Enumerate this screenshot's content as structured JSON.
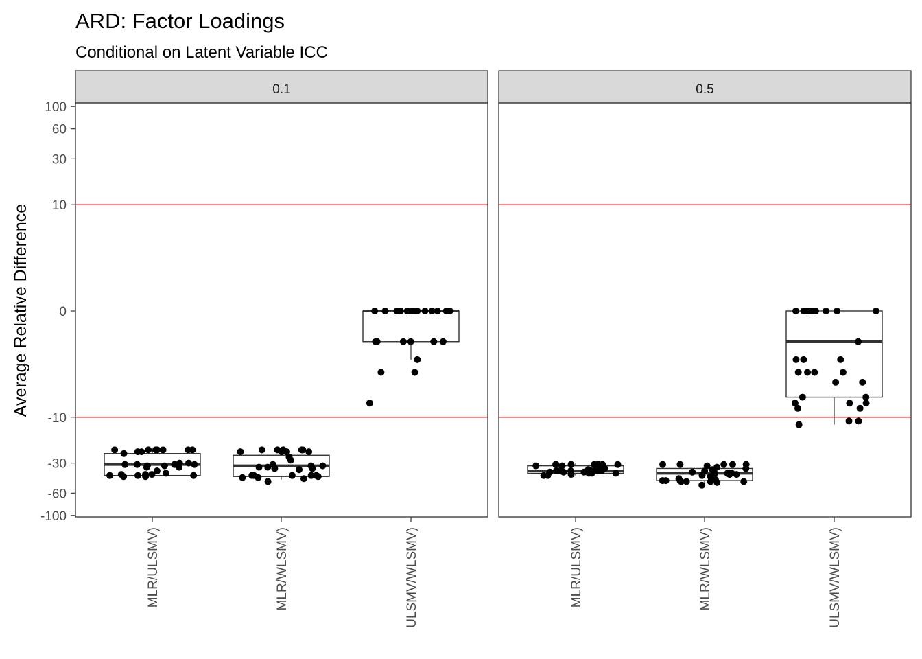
{
  "chart_data": {
    "type": "box",
    "title": "ARD: Factor Loadings",
    "subtitle": "Conditional on Latent Variable ICC",
    "xlabel": "",
    "ylabel": "Average Relative Difference",
    "y_scale": "pseudo-log (symmetric)",
    "ylim": [
      -120,
      120
    ],
    "y_ticks": [
      100,
      60,
      30,
      10,
      0,
      -10,
      -30,
      -60,
      -100
    ],
    "reference_lines": [
      10,
      -10
    ],
    "reference_line_color": "#e41a1c",
    "categories": [
      "MLR/ULSMV)",
      "MLR/WLSMV)",
      "ULSMV/WLSMV)"
    ],
    "grid": false,
    "panels": [
      {
        "facet": "0.1",
        "boxes": [
          {
            "category": "MLR/ULSMV)",
            "q1": -40,
            "median": -31,
            "q3": -24,
            "whisker_low": -41,
            "whisker_high": -22,
            "points": [
              -22,
              -22,
              -22,
              -23,
              -22,
              -22,
              -24,
              -23,
              -22,
              -22,
              -30,
              -31,
              -31,
              -33,
              -32,
              -30,
              -33,
              -32,
              -31,
              -31,
              -36,
              -38,
              -39,
              -39,
              -40,
              -39,
              -40,
              -41,
              -41,
              -40
            ]
          },
          {
            "category": "MLR/WLSMV)",
            "q1": -41,
            "median": -32,
            "q3": -25,
            "whisker_low": -44,
            "whisker_high": -22,
            "points": [
              -22,
              -23,
              -22,
              -22,
              -23,
              -22,
              -23,
              -22,
              -22,
              -23,
              -26,
              -28,
              -31,
              -32,
              -33,
              -34,
              -33,
              -32,
              -35,
              -34,
              -40,
              -42,
              -40,
              -41,
              -42,
              -43,
              -40,
              -40,
              -40,
              -46
            ]
          },
          {
            "category": "ULSMV/WLSMV)",
            "q1": -1,
            "median": 0,
            "q3": 0,
            "whisker_low": -2,
            "whisker_high": 0,
            "points": [
              0,
              0,
              0,
              0,
              0,
              0,
              0,
              0,
              0,
              0,
              0,
              0,
              0,
              0,
              0,
              0,
              0,
              0,
              0,
              0,
              -1,
              -1,
              -1,
              -1,
              -1,
              -2,
              -3,
              -3,
              -1,
              -7
            ]
          }
        ]
      },
      {
        "facet": "0.5",
        "boxes": [
          {
            "category": "MLR/ULSMV)",
            "q1": -38,
            "median": -36,
            "q3": -32,
            "whisker_low": -40,
            "whisker_high": -30,
            "points": [
              -31,
              -31,
              -31,
              -31,
              -31,
              -31,
              -31,
              -31,
              -32,
              -32,
              -34,
              -35,
              -35,
              -36,
              -36,
              -36,
              -36,
              -37,
              -36,
              -36,
              -36,
              -36,
              -37,
              -37,
              -38,
              -38,
              -39,
              -40,
              -40,
              -38
            ]
          },
          {
            "category": "MLR/WLSMV)",
            "q1": -45,
            "median": -38,
            "q3": -34,
            "whisker_low": -48,
            "whisker_high": -31,
            "points": [
              -31,
              -31,
              -31,
              -31,
              -31,
              -32,
              -33,
              -34,
              -35,
              -36,
              -37,
              -38,
              -38,
              -38,
              -39,
              -40,
              -39,
              -38,
              -41,
              -43,
              -44,
              -45,
              -45,
              -46,
              -46,
              -45,
              -46,
              -46,
              -47,
              -50
            ]
          },
          {
            "category": "ULSMV/WLSMV)",
            "q1": -6,
            "median": -1,
            "q3": 0,
            "whisker_low": -12,
            "whisker_high": 0,
            "points": [
              0,
              0,
              0,
              0,
              0,
              0,
              0,
              0,
              0,
              0,
              -1,
              -2,
              -2,
              -2,
              -3,
              -3,
              -3,
              -3,
              -4,
              -4,
              -6,
              -6,
              -7,
              -7,
              -8,
              -7,
              -8,
              -11,
              -11,
              -12
            ]
          }
        ]
      }
    ]
  }
}
